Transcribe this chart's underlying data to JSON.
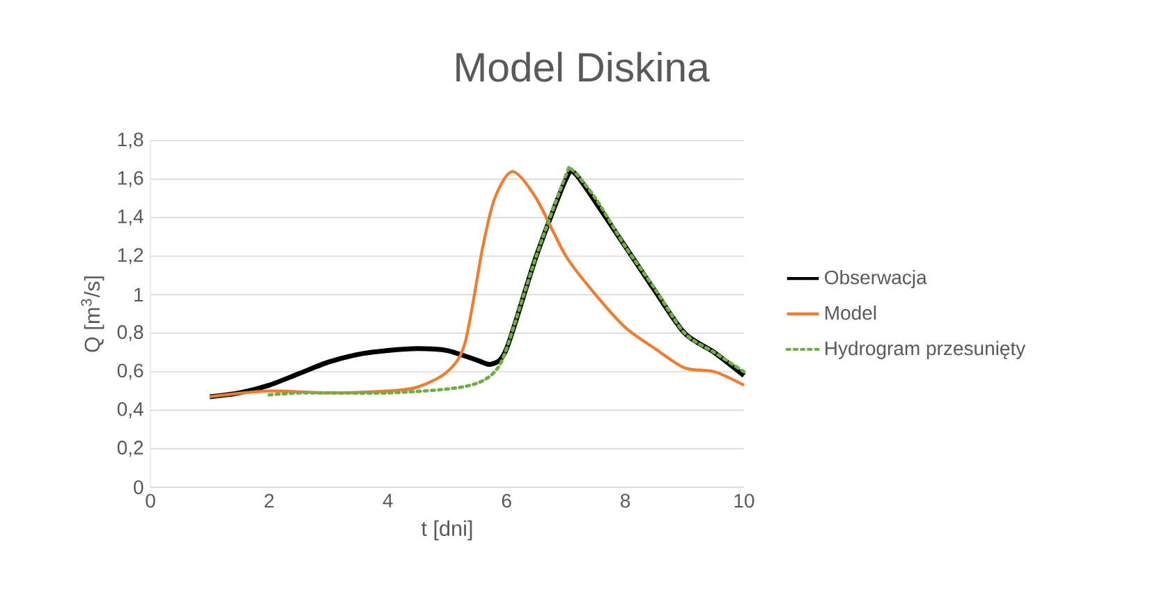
{
  "chart_data": {
    "type": "line",
    "title": "Model Diskina",
    "xlabel": "t [dni]",
    "ylabel": "Q [m$^{3}$/s]",
    "xlim": [
      0,
      10
    ],
    "xticks": [
      0,
      2,
      4,
      6,
      8,
      10
    ],
    "ylim": [
      0,
      1.8
    ],
    "yticks": [
      0,
      {
        "value": 0.2,
        "label": "0,2"
      },
      {
        "value": 0.4,
        "label": "0,4"
      },
      {
        "value": 0.6,
        "label": "0,6"
      },
      {
        "value": 0.8,
        "label": "0,8"
      },
      1,
      {
        "value": 1.2,
        "label": "1,2"
      },
      {
        "value": 1.4,
        "label": "1,4"
      },
      {
        "value": 1.6,
        "label": "1,6"
      },
      {
        "value": 1.8,
        "label": "1,8"
      }
    ],
    "grid": "y",
    "legend": "right",
    "marker": "none",
    "series": [
      {
        "name": "Obserwacja",
        "color": "#000000",
        "line_style": "solid",
        "x": [
          1,
          1.5,
          2,
          2.5,
          3,
          3.5,
          4,
          4.5,
          5,
          5.5,
          5.75,
          6,
          6.5,
          7,
          7.15,
          7.5,
          8,
          8.5,
          9,
          9.5,
          10
        ],
        "values": [
          0.47,
          0.49,
          0.53,
          0.59,
          0.65,
          0.69,
          0.71,
          0.72,
          0.71,
          0.66,
          0.64,
          0.72,
          1.2,
          1.6,
          1.63,
          1.48,
          1.25,
          1.02,
          0.8,
          0.7,
          0.58
        ]
      },
      {
        "name": "Model",
        "color": "#ed7d31",
        "line_style": "solid",
        "x": [
          1,
          2,
          3,
          4,
          4.5,
          5,
          5.3,
          5.6,
          5.8,
          6.1,
          6.5,
          7,
          7.5,
          8,
          8.5,
          9,
          9.5,
          10
        ],
        "values": [
          0.47,
          0.5,
          0.49,
          0.5,
          0.52,
          0.6,
          0.75,
          1.25,
          1.5,
          1.64,
          1.5,
          1.2,
          1.0,
          0.83,
          0.72,
          0.62,
          0.6,
          0.53
        ]
      },
      {
        "name": "Hydrogram przesunięty",
        "color": "#70ad47",
        "line_style": "dotted",
        "x": [
          2,
          2.5,
          3,
          4,
          5,
          5.5,
          5.8,
          6,
          6.5,
          7,
          7.1,
          7.5,
          8,
          8.5,
          9,
          9.5,
          10
        ],
        "values": [
          0.48,
          0.49,
          0.49,
          0.49,
          0.51,
          0.54,
          0.6,
          0.72,
          1.2,
          1.62,
          1.65,
          1.5,
          1.25,
          1.03,
          0.8,
          0.7,
          0.6
        ]
      }
    ]
  }
}
